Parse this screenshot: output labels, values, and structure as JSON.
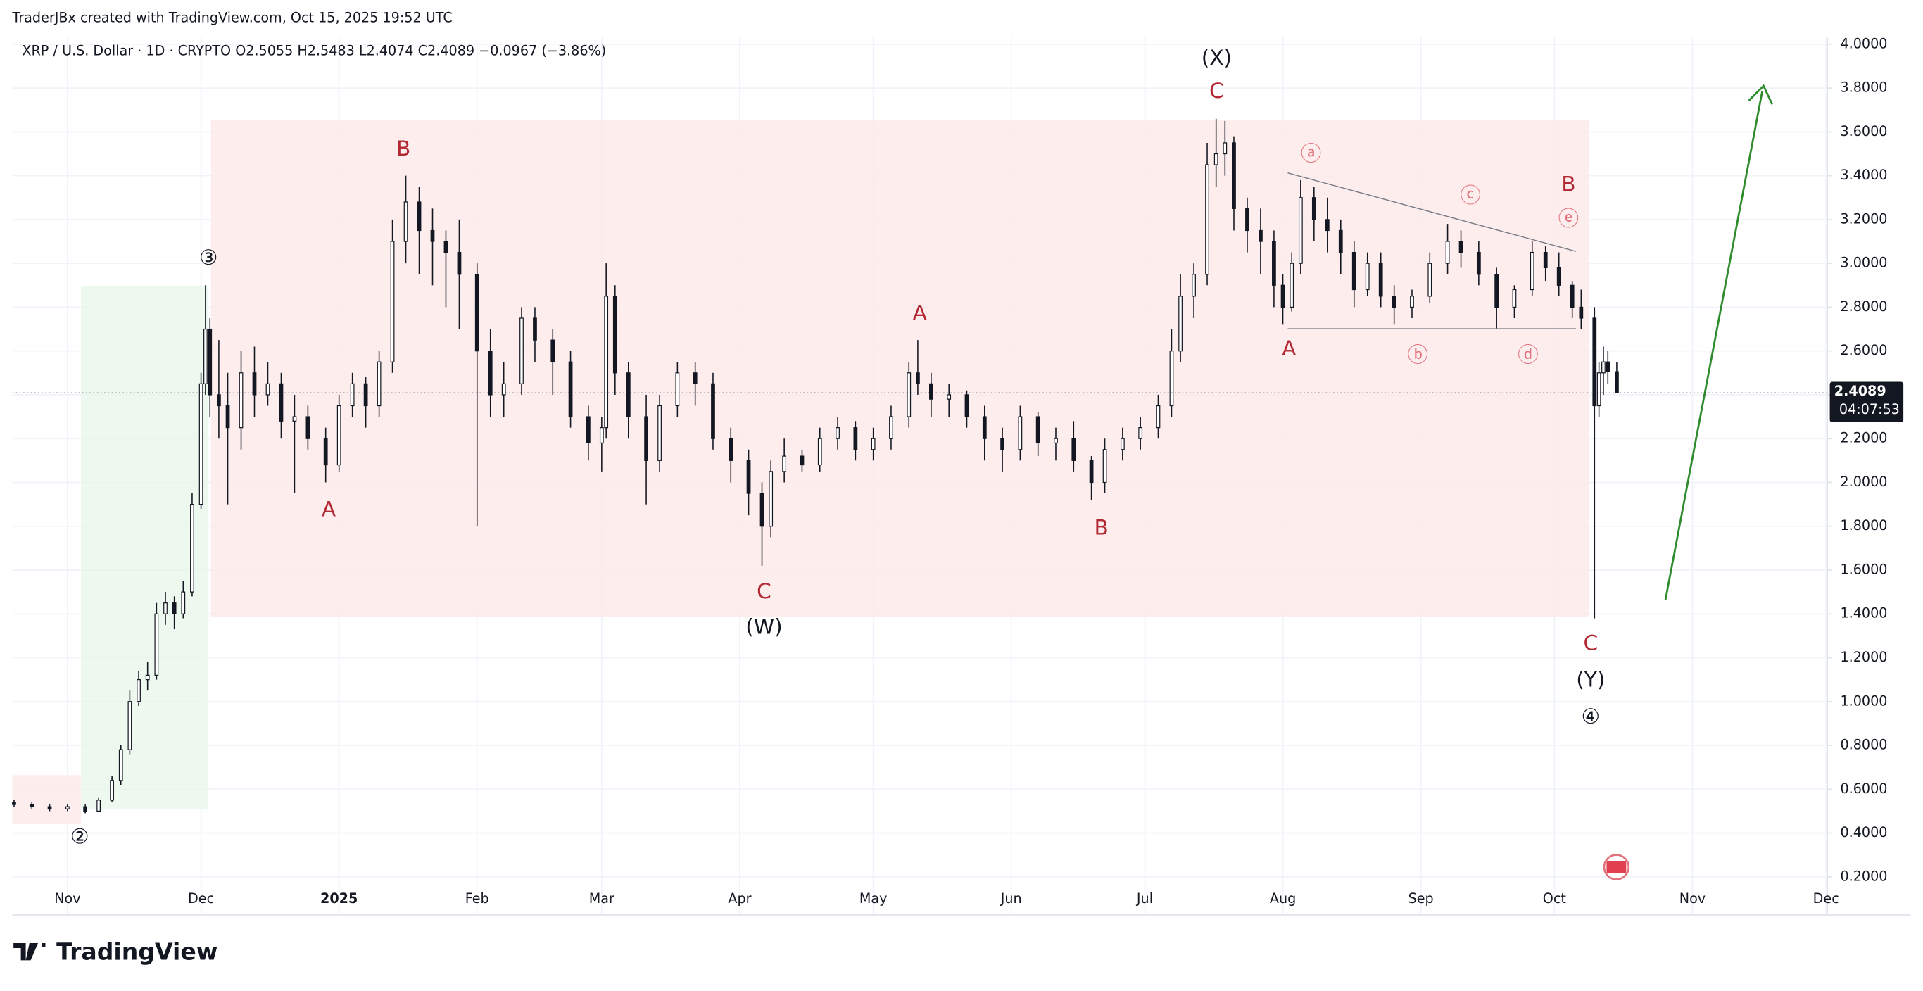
{
  "watermark": "TraderJBx created with TradingView.com, Oct 15, 2025 19:52 UTC",
  "logo": "TradingView",
  "chart_data": {
    "type": "candlestick",
    "title": "XRP / U.S. Dollar · 1D · CRYPTO  O2.5055  H2.5483  L2.4074  C2.4089  −0.0967 (−3.86%)",
    "price_tag": "2.4089",
    "countdown": "04:07:53",
    "up_color": "#ffffff",
    "down_color": "#131722",
    "grid": true,
    "xlim": [
      -12.4,
      395.3
    ],
    "xticks": [
      {
        "value": 0,
        "label": "Nov"
      },
      {
        "value": 30,
        "label": "Dec"
      },
      {
        "value": 61,
        "label": "2025"
      },
      {
        "value": 92,
        "label": "Feb"
      },
      {
        "value": 120,
        "label": "Mar"
      },
      {
        "value": 151,
        "label": "Apr"
      },
      {
        "value": 181,
        "label": "May"
      },
      {
        "value": 212,
        "label": "Jun"
      },
      {
        "value": 242,
        "label": "Jul"
      },
      {
        "value": 273,
        "label": "Aug"
      },
      {
        "value": 304,
        "label": "Sep"
      },
      {
        "value": 334,
        "label": "Oct"
      },
      {
        "value": 365,
        "label": "Nov"
      },
      {
        "value": 395,
        "label": "Dec"
      }
    ],
    "ylim": [
      0.026,
      4.034
    ],
    "yticks": [
      {
        "value": 0.2,
        "label": "0.2000"
      },
      {
        "value": 0.4,
        "label": "0.4000"
      },
      {
        "value": 0.6,
        "label": "0.6000"
      },
      {
        "value": 0.8,
        "label": "0.8000"
      },
      {
        "value": 1.0,
        "label": "1.0000"
      },
      {
        "value": 1.2,
        "label": "1.2000"
      },
      {
        "value": 1.4,
        "label": "1.4000"
      },
      {
        "value": 1.6,
        "label": "1.6000"
      },
      {
        "value": 1.8,
        "label": "1.8000"
      },
      {
        "value": 2.0,
        "label": "2.0000"
      },
      {
        "value": 2.2,
        "label": "2.2000"
      },
      {
        "value": 2.4,
        "label": "2.4000"
      },
      {
        "value": 2.6,
        "label": "2.6000"
      },
      {
        "value": 2.8,
        "label": "2.8000"
      },
      {
        "value": 3.0,
        "label": "3.0000"
      },
      {
        "value": 3.2,
        "label": "3.2000"
      },
      {
        "value": 3.4,
        "label": "3.4000"
      },
      {
        "value": 3.6,
        "label": "3.6000"
      },
      {
        "value": 3.8,
        "label": "3.8000"
      },
      {
        "value": 4.0,
        "label": "4.0000"
      }
    ],
    "x": [
      -12,
      -8,
      -4,
      0,
      4,
      7,
      10,
      12,
      14,
      16,
      18,
      20,
      22,
      24,
      26,
      28,
      30,
      31,
      32,
      34,
      36,
      39,
      42,
      45,
      48,
      51,
      54,
      58,
      61,
      64,
      67,
      70,
      73,
      76,
      79,
      82,
      85,
      88,
      92,
      95,
      98,
      102,
      105,
      109,
      113,
      117,
      120,
      121,
      123,
      126,
      130,
      133,
      137,
      141,
      145,
      149,
      153,
      156,
      158,
      161,
      165,
      169,
      173,
      177,
      181,
      185,
      189,
      191,
      194,
      198,
      202,
      206,
      210,
      214,
      218,
      222,
      226,
      230,
      233,
      237,
      241,
      245,
      248,
      250,
      253,
      256,
      258,
      260,
      262,
      265,
      268,
      271,
      273,
      275,
      277,
      280,
      283,
      286,
      289,
      292,
      295,
      298,
      302,
      306,
      310,
      313,
      317,
      321,
      325,
      329,
      332,
      335,
      338,
      340,
      343,
      344,
      345,
      346,
      348
    ],
    "open": [
      0.54,
      0.53,
      0.52,
      0.51,
      0.52,
      0.5,
      0.55,
      0.64,
      0.78,
      1.0,
      1.1,
      1.12,
      1.4,
      1.45,
      1.4,
      1.5,
      1.9,
      2.45,
      2.7,
      2.4,
      2.35,
      2.25,
      2.5,
      2.4,
      2.45,
      2.28,
      2.3,
      2.2,
      2.08,
      2.35,
      2.45,
      2.35,
      2.55,
      3.1,
      3.28,
      3.15,
      3.1,
      3.05,
      2.95,
      2.6,
      2.4,
      2.45,
      2.75,
      2.65,
      2.55,
      2.3,
      2.18,
      2.25,
      2.85,
      2.5,
      2.3,
      2.1,
      2.35,
      2.5,
      2.45,
      2.2,
      2.1,
      1.95,
      1.8,
      2.05,
      2.12,
      2.08,
      2.2,
      2.25,
      2.15,
      2.2,
      2.3,
      2.5,
      2.45,
      2.38,
      2.4,
      2.3,
      2.2,
      2.15,
      2.3,
      2.18,
      2.2,
      2.1,
      2.0,
      2.15,
      2.2,
      2.25,
      2.35,
      2.6,
      2.85,
      2.95,
      3.45,
      3.5,
      3.55,
      3.25,
      3.15,
      3.1,
      2.9,
      2.8,
      3.0,
      3.3,
      3.2,
      3.15,
      3.05,
      2.88,
      3.0,
      2.85,
      2.8,
      2.85,
      3.0,
      3.1,
      3.05,
      2.95,
      2.8,
      2.88,
      3.05,
      2.98,
      2.9,
      2.8,
      2.75,
      2.35,
      2.5,
      2.55,
      2.5055
    ],
    "high": [
      0.55,
      0.54,
      0.53,
      0.53,
      0.53,
      0.56,
      0.66,
      0.8,
      1.05,
      1.14,
      1.18,
      1.45,
      1.5,
      1.48,
      1.55,
      1.95,
      2.5,
      2.9,
      2.75,
      2.65,
      2.5,
      2.6,
      2.62,
      2.55,
      2.5,
      2.4,
      2.35,
      2.25,
      2.4,
      2.5,
      2.48,
      2.6,
      3.2,
      3.4,
      3.35,
      3.25,
      3.15,
      3.2,
      3.0,
      2.7,
      2.55,
      2.8,
      2.8,
      2.7,
      2.6,
      2.35,
      2.3,
      3.0,
      2.9,
      2.55,
      2.4,
      2.4,
      2.55,
      2.55,
      2.5,
      2.25,
      2.15,
      2.0,
      2.1,
      2.2,
      2.15,
      2.25,
      2.3,
      2.28,
      2.25,
      2.35,
      2.55,
      2.65,
      2.5,
      2.45,
      2.42,
      2.35,
      2.25,
      2.35,
      2.32,
      2.25,
      2.28,
      2.12,
      2.2,
      2.25,
      2.3,
      2.4,
      2.7,
      2.95,
      3.0,
      3.55,
      3.66,
      3.65,
      3.58,
      3.3,
      3.25,
      3.15,
      2.95,
      3.05,
      3.38,
      3.35,
      3.3,
      3.2,
      3.1,
      3.05,
      3.05,
      2.9,
      2.88,
      3.05,
      3.18,
      3.15,
      3.1,
      2.98,
      2.9,
      3.1,
      3.08,
      3.05,
      2.92,
      2.88,
      2.8,
      2.55,
      2.62,
      2.6,
      2.5483
    ],
    "low": [
      0.52,
      0.51,
      0.5,
      0.5,
      0.49,
      0.5,
      0.54,
      0.62,
      0.76,
      0.98,
      1.05,
      1.1,
      1.35,
      1.33,
      1.38,
      1.48,
      1.88,
      2.4,
      2.3,
      2.2,
      1.9,
      2.15,
      2.3,
      2.35,
      2.2,
      1.95,
      2.15,
      2.0,
      2.05,
      2.3,
      2.25,
      2.3,
      2.5,
      3.0,
      2.95,
      2.9,
      2.8,
      2.7,
      1.8,
      2.3,
      2.3,
      2.4,
      2.55,
      2.4,
      2.25,
      2.1,
      2.05,
      2.2,
      2.4,
      2.2,
      1.9,
      2.05,
      2.3,
      2.35,
      2.15,
      2.0,
      1.85,
      1.62,
      1.75,
      2.0,
      2.05,
      2.05,
      2.15,
      2.1,
      2.1,
      2.15,
      2.25,
      2.4,
      2.3,
      2.3,
      2.25,
      2.1,
      2.05,
      2.1,
      2.12,
      2.1,
      2.05,
      1.92,
      1.95,
      2.1,
      2.15,
      2.2,
      2.3,
      2.55,
      2.75,
      2.9,
      3.35,
      3.4,
      3.15,
      3.05,
      2.95,
      2.8,
      2.72,
      2.78,
      2.95,
      3.1,
      3.05,
      2.95,
      2.8,
      2.85,
      2.8,
      2.72,
      2.75,
      2.82,
      2.95,
      2.98,
      2.9,
      2.7,
      2.75,
      2.85,
      2.92,
      2.85,
      2.75,
      2.7,
      1.38,
      2.3,
      2.4,
      2.45,
      2.4074
    ],
    "close": [
      0.53,
      0.52,
      0.51,
      0.52,
      0.5,
      0.55,
      0.64,
      0.78,
      1.0,
      1.1,
      1.12,
      1.4,
      1.45,
      1.4,
      1.5,
      1.9,
      2.45,
      2.7,
      2.4,
      2.35,
      2.25,
      2.5,
      2.4,
      2.45,
      2.28,
      2.3,
      2.2,
      2.08,
      2.35,
      2.45,
      2.35,
      2.55,
      3.1,
      3.28,
      3.15,
      3.1,
      3.05,
      2.95,
      2.6,
      2.4,
      2.45,
      2.75,
      2.65,
      2.55,
      2.3,
      2.18,
      2.25,
      2.85,
      2.5,
      2.3,
      2.1,
      2.35,
      2.5,
      2.45,
      2.2,
      2.1,
      1.95,
      1.8,
      2.05,
      2.12,
      2.08,
      2.2,
      2.25,
      2.15,
      2.2,
      2.3,
      2.5,
      2.45,
      2.38,
      2.4,
      2.3,
      2.2,
      2.15,
      2.3,
      2.18,
      2.2,
      2.1,
      2.0,
      2.15,
      2.2,
      2.25,
      2.35,
      2.6,
      2.85,
      2.95,
      3.45,
      3.5,
      3.55,
      3.25,
      3.15,
      3.1,
      2.9,
      2.8,
      3.0,
      3.3,
      3.2,
      3.15,
      3.05,
      2.88,
      3.0,
      2.85,
      2.8,
      2.85,
      3.0,
      3.1,
      3.05,
      2.95,
      2.8,
      2.88,
      3.05,
      2.98,
      2.9,
      2.8,
      2.75,
      2.35,
      2.5,
      2.55,
      2.5055,
      2.4089
    ],
    "annotations": [
      {
        "text": "②",
        "color": "#131722"
      },
      {
        "text": "③",
        "color": "#131722"
      },
      {
        "text": "B",
        "color": "#b22833"
      },
      {
        "text": "A",
        "color": "#b22833"
      },
      {
        "text": "A",
        "color": "#b22833"
      },
      {
        "text": "C",
        "color": "#b22833"
      },
      {
        "text": "(W)",
        "color": "#131722"
      },
      {
        "text": "B",
        "color": "#b22833"
      },
      {
        "text": "(X)",
        "color": "#131722"
      },
      {
        "text": "C",
        "color": "#b22833"
      },
      {
        "text": "A",
        "color": "#b22833"
      },
      {
        "text": "ⓐ",
        "color": "#e0707a"
      },
      {
        "text": "ⓑ",
        "color": "#e0707a"
      },
      {
        "text": "ⓒ",
        "color": "#e0707a"
      },
      {
        "text": "ⓓ",
        "color": "#e0707a"
      },
      {
        "text": "ⓔ",
        "color": "#e0707a"
      },
      {
        "text": "B",
        "color": "#b22833"
      },
      {
        "text": "C",
        "color": "#b22833"
      },
      {
        "text": "(Y)",
        "color": "#131722"
      },
      {
        "text": "④",
        "color": "#131722"
      }
    ]
  }
}
